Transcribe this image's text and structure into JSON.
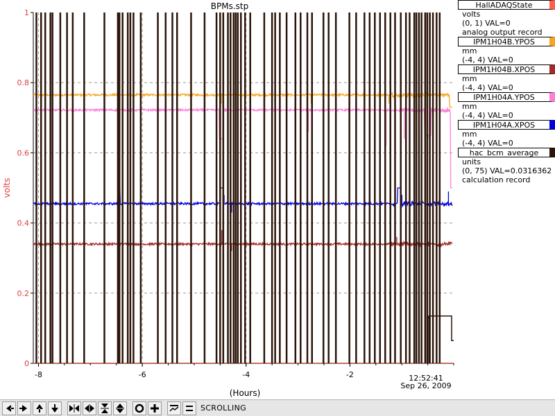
{
  "chart_data": {
    "type": "line",
    "title": "BPMs.stp",
    "xlabel": "(Hours)",
    "ylabel": "volts",
    "xlim": [
      -8.1,
      0.0
    ],
    "ylim": [
      0,
      1
    ],
    "x_ticks": [
      "-8",
      "-6",
      "-4",
      "-2"
    ],
    "y_ticks": [
      "0",
      "0.2",
      "0.4",
      "0.6",
      "0.8",
      "1"
    ],
    "time_label": "12:52:41",
    "date_label": "Sep 26, 2009",
    "grid": true,
    "series": [
      {
        "name": "HallADAQState",
        "color": "#ff5e4f",
        "x": [
          -8.1,
          0.0
        ],
        "y": [
          0.0,
          0.0
        ]
      },
      {
        "name": "IPM1H04B.YPOS",
        "color": "#f5a623",
        "x": [
          -8.1,
          -6.45,
          -6.4,
          -4.55,
          -4.45,
          -3.3,
          -1.2,
          -0.95,
          -0.5,
          -0.1,
          -0.03
        ],
        "y": [
          0.765,
          0.765,
          0.765,
          0.765,
          0.765,
          0.765,
          0.765,
          0.765,
          0.765,
          0.765,
          0.76
        ]
      },
      {
        "name": "IPM1H04B.XPOS",
        "color": "#a52a2a",
        "x": [
          -8.1,
          -6.45,
          -6.4,
          -4.5,
          -4.4,
          -1.2,
          -0.03
        ],
        "y": [
          0.34,
          0.34,
          0.34,
          0.34,
          0.34,
          0.34,
          0.34
        ]
      },
      {
        "name": "IPM1H04A.YPOS",
        "color": "#ff7fd8",
        "x": [
          -8.1,
          -6.45,
          -6.4,
          -4.55,
          -4.45,
          -1.2,
          -0.5,
          -0.03
        ],
        "y": [
          0.722,
          0.722,
          0.722,
          0.722,
          0.722,
          0.722,
          0.722,
          0.722
        ]
      },
      {
        "name": "IPM1H04A.XPOS",
        "color": "#0000e0",
        "x": [
          -8.1,
          -6.45,
          -6.4,
          -4.5,
          -4.4,
          -1.2,
          -0.03
        ],
        "y": [
          0.455,
          0.455,
          0.46,
          0.455,
          0.455,
          0.455,
          0.46
        ]
      },
      {
        "name": "hac_bcm_average",
        "color": "#2b1408",
        "x": [
          -0.5,
          -0.48,
          -0.48,
          -0.04,
          -0.04,
          -0.0
        ],
        "y": [
          0.13,
          0.13,
          0.135,
          0.135,
          0.065,
          0.065
        ]
      }
    ]
  },
  "legend": [
    {
      "name": "HallADAQState",
      "color": "#ff5e4f",
      "lines": [
        "volts",
        "(0, 1) VAL=0",
        "analog output record"
      ]
    },
    {
      "name": "IPM1H04B.YPOS",
      "color": "#f5a623",
      "lines": [
        "mm",
        "(-4, 4) VAL=0"
      ]
    },
    {
      "name": "IPM1H04B.XPOS",
      "color": "#a52a2a",
      "lines": [
        "mm",
        "(-4, 4) VAL=0"
      ]
    },
    {
      "name": "IPM1H04A.YPOS",
      "color": "#ff7fd8",
      "lines": [
        "mm",
        "(-4, 4) VAL=0"
      ]
    },
    {
      "name": "IPM1H04A.XPOS",
      "color": "#0000e0",
      "lines": [
        "mm",
        "(-4, 4) VAL=0"
      ]
    },
    {
      "name": "hac_bcm_average",
      "color": "#2b1408",
      "lines": [
        "units",
        "(0, 75) VAL=0.0316362",
        "calculation record"
      ]
    }
  ],
  "toolbar": {
    "buttons": [
      {
        "name": "pan-left-button",
        "icon": "arrow-left-icon"
      },
      {
        "name": "pan-right-button",
        "icon": "arrow-right-icon"
      },
      {
        "name": "pan-up-button",
        "icon": "arrow-up-icon"
      },
      {
        "name": "pan-down-button",
        "icon": "arrow-down-icon"
      },
      {
        "name": "zoom-in-time-button",
        "icon": "zoom-in-time-icon"
      },
      {
        "name": "zoom-out-time-button",
        "icon": "zoom-out-time-icon"
      },
      {
        "name": "zoom-in-value-button",
        "icon": "zoom-in-value-icon"
      },
      {
        "name": "zoom-out-value-button",
        "icon": "zoom-out-value-icon"
      },
      {
        "name": "autoscale-button",
        "icon": "circle-icon"
      },
      {
        "name": "add-button",
        "icon": "plus-icon"
      },
      {
        "name": "strip-button",
        "icon": "strip-chart-icon"
      },
      {
        "name": "pause-button",
        "icon": "pause-icon"
      }
    ],
    "status": "SCROLLING"
  }
}
